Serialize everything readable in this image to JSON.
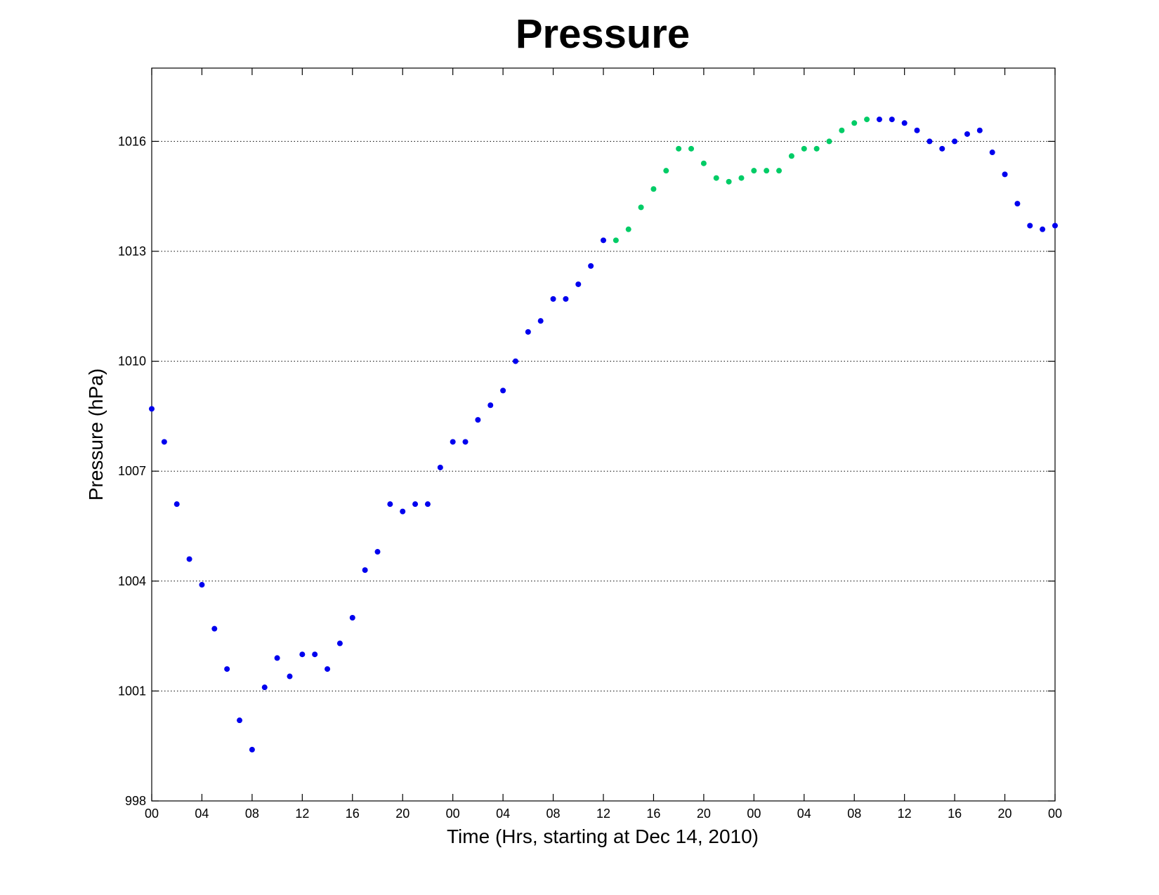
{
  "chart_data": {
    "type": "scatter",
    "title": "Pressure",
    "xlabel": "Time (Hrs, starting at Dec 14, 2010)",
    "ylabel": "Pressure (hPa)",
    "xlim": [
      0,
      72
    ],
    "ylim": [
      998,
      1018
    ],
    "x_tick_values": [
      0,
      4,
      8,
      12,
      16,
      20,
      24,
      28,
      32,
      36,
      40,
      44,
      48,
      52,
      56,
      60,
      64,
      68,
      72
    ],
    "x_tick_labels": [
      "00",
      "04",
      "08",
      "12",
      "16",
      "20",
      "00",
      "04",
      "08",
      "12",
      "16",
      "20",
      "00",
      "04",
      "08",
      "12",
      "16",
      "20",
      "00"
    ],
    "y_ticks": [
      998,
      1001,
      1004,
      1007,
      1010,
      1013,
      1016
    ],
    "grid": "horizontal-dotted",
    "series": [
      {
        "color": "#0000ee",
        "points": [
          [
            0,
            1008.7
          ],
          [
            1,
            1007.8
          ],
          [
            2,
            1006.1
          ],
          [
            3,
            1004.6
          ],
          [
            4,
            1003.9
          ],
          [
            5,
            1002.7
          ],
          [
            6,
            1001.6
          ],
          [
            7,
            1000.2
          ],
          [
            8,
            999.4
          ],
          [
            9,
            1001.1
          ],
          [
            10,
            1001.9
          ],
          [
            11,
            1001.4
          ],
          [
            12,
            1002.0
          ],
          [
            13,
            1002.0
          ],
          [
            14,
            1001.6
          ],
          [
            15,
            1002.3
          ],
          [
            16,
            1003.0
          ],
          [
            17,
            1004.3
          ],
          [
            18,
            1004.8
          ],
          [
            19,
            1006.1
          ],
          [
            20,
            1005.9
          ],
          [
            21,
            1006.1
          ],
          [
            22,
            1006.1
          ],
          [
            23,
            1007.1
          ],
          [
            24,
            1007.8
          ],
          [
            25,
            1007.8
          ],
          [
            26,
            1008.4
          ],
          [
            27,
            1008.8
          ],
          [
            28,
            1009.2
          ],
          [
            29,
            1010.0
          ],
          [
            30,
            1010.8
          ],
          [
            31,
            1011.1
          ],
          [
            32,
            1011.7
          ],
          [
            33,
            1011.7
          ],
          [
            34,
            1012.1
          ],
          [
            35,
            1012.6
          ],
          [
            36,
            1013.3
          ],
          [
            58,
            1016.6
          ],
          [
            59,
            1016.6
          ],
          [
            60,
            1016.5
          ],
          [
            61,
            1016.3
          ],
          [
            62,
            1016.0
          ],
          [
            63,
            1015.8
          ],
          [
            64,
            1016.0
          ],
          [
            65,
            1016.2
          ],
          [
            66,
            1016.3
          ],
          [
            67,
            1015.7
          ],
          [
            68,
            1015.1
          ],
          [
            69,
            1014.3
          ],
          [
            70,
            1013.7
          ],
          [
            71,
            1013.6
          ],
          [
            72,
            1013.7
          ]
        ]
      },
      {
        "color": "#00cc66",
        "points": [
          [
            37,
            1013.3
          ],
          [
            38,
            1013.6
          ],
          [
            39,
            1014.2
          ],
          [
            40,
            1014.7
          ],
          [
            41,
            1015.2
          ],
          [
            42,
            1015.8
          ],
          [
            43,
            1015.8
          ],
          [
            44,
            1015.4
          ],
          [
            45,
            1015.0
          ],
          [
            46,
            1014.9
          ],
          [
            47,
            1015.0
          ],
          [
            48,
            1015.2
          ],
          [
            49,
            1015.2
          ],
          [
            50,
            1015.2
          ],
          [
            51,
            1015.6
          ],
          [
            52,
            1015.8
          ],
          [
            53,
            1015.8
          ],
          [
            54,
            1016.0
          ],
          [
            55,
            1016.3
          ],
          [
            56,
            1016.5
          ],
          [
            57,
            1016.6
          ]
        ]
      }
    ]
  }
}
